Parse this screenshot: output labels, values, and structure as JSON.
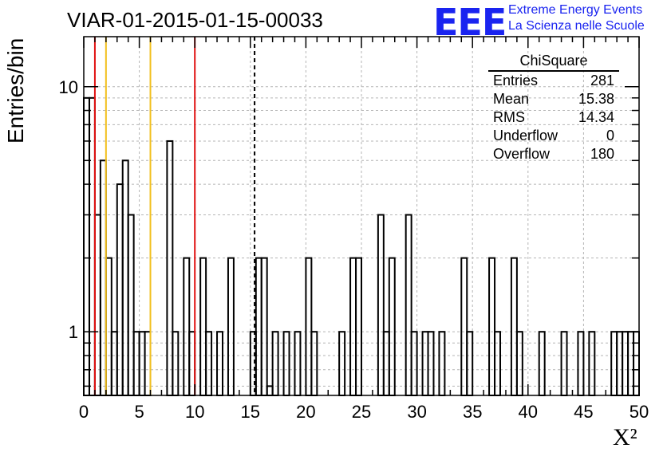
{
  "title": "VIAR-01-2015-01-15-00033",
  "logo": {
    "mark": "EEE",
    "line1": "Extreme Energy Events",
    "line2": "La Scienza nelle Scuole"
  },
  "axes": {
    "xlabel": "X²",
    "ylabel": "Entries/bin",
    "xticks": [
      "0",
      "5",
      "10",
      "15",
      "20",
      "25",
      "30",
      "35",
      "40",
      "45",
      "50"
    ],
    "yticks": [
      "1",
      "10"
    ]
  },
  "stats": {
    "name": "ChiSquare",
    "rows": [
      {
        "label": "Entries",
        "value": "281"
      },
      {
        "label": "Mean",
        "value": "15.38"
      },
      {
        "label": "RMS",
        "value": "14.34"
      },
      {
        "label": "Underflow",
        "value": "0"
      },
      {
        "label": "Overflow",
        "value": "180"
      }
    ]
  },
  "chart_data": {
    "type": "histogram",
    "title": "VIAR-01-2015-01-15-00033",
    "xlabel": "X²",
    "ylabel": "Entries/bin",
    "xlim": [
      0,
      50
    ],
    "ylim": [
      0.55,
      16
    ],
    "y_scale": "log",
    "grid": true,
    "bin_width": 0.5,
    "bins": [
      {
        "x0": 0.0,
        "y": 9
      },
      {
        "x0": 0.5,
        "y": 9
      },
      {
        "x0": 1.0,
        "y": 3
      },
      {
        "x0": 1.5,
        "y": 5
      },
      {
        "x0": 2.0,
        "y": 2
      },
      {
        "x0": 2.5,
        "y": 1
      },
      {
        "x0": 3.0,
        "y": 4
      },
      {
        "x0": 3.5,
        "y": 5
      },
      {
        "x0": 4.0,
        "y": 3
      },
      {
        "x0": 4.5,
        "y": 1
      },
      {
        "x0": 5.0,
        "y": 1
      },
      {
        "x0": 5.5,
        "y": 1
      },
      {
        "x0": 7.5,
        "y": 6
      },
      {
        "x0": 8.0,
        "y": 1
      },
      {
        "x0": 9.0,
        "y": 2
      },
      {
        "x0": 9.5,
        "y": 1
      },
      {
        "x0": 10.5,
        "y": 2
      },
      {
        "x0": 11.0,
        "y": 1
      },
      {
        "x0": 12.0,
        "y": 1
      },
      {
        "x0": 13.0,
        "y": 2
      },
      {
        "x0": 15.0,
        "y": 1
      },
      {
        "x0": 15.5,
        "y": 2
      },
      {
        "x0": 16.0,
        "y": 2
      },
      {
        "x0": 16.5,
        "y": 0.6
      },
      {
        "x0": 17.0,
        "y": 1
      },
      {
        "x0": 18.0,
        "y": 1
      },
      {
        "x0": 19.0,
        "y": 1
      },
      {
        "x0": 20.0,
        "y": 2
      },
      {
        "x0": 20.5,
        "y": 1
      },
      {
        "x0": 23.0,
        "y": 1
      },
      {
        "x0": 24.0,
        "y": 2
      },
      {
        "x0": 24.5,
        "y": 2
      },
      {
        "x0": 26.5,
        "y": 3
      },
      {
        "x0": 27.0,
        "y": 1
      },
      {
        "x0": 27.5,
        "y": 2
      },
      {
        "x0": 29.0,
        "y": 3
      },
      {
        "x0": 29.5,
        "y": 1
      },
      {
        "x0": 30.5,
        "y": 1
      },
      {
        "x0": 31.0,
        "y": 1
      },
      {
        "x0": 32.0,
        "y": 1
      },
      {
        "x0": 34.0,
        "y": 2
      },
      {
        "x0": 34.5,
        "y": 1
      },
      {
        "x0": 36.5,
        "y": 2
      },
      {
        "x0": 37.0,
        "y": 1
      },
      {
        "x0": 38.5,
        "y": 2
      },
      {
        "x0": 39.0,
        "y": 1
      },
      {
        "x0": 41.0,
        "y": 1
      },
      {
        "x0": 43.0,
        "y": 1
      },
      {
        "x0": 44.5,
        "y": 1
      },
      {
        "x0": 45.5,
        "y": 1
      },
      {
        "x0": 47.5,
        "y": 1
      },
      {
        "x0": 48.0,
        "y": 1
      },
      {
        "x0": 48.5,
        "y": 1
      },
      {
        "x0": 49.0,
        "y": 1
      },
      {
        "x0": 49.5,
        "y": 1
      }
    ],
    "reference_lines": [
      {
        "x": 1,
        "color": "#e01010",
        "style": "solid"
      },
      {
        "x": 2,
        "color": "#f2c01e",
        "style": "solid"
      },
      {
        "x": 6,
        "color": "#f2c01e",
        "style": "solid"
      },
      {
        "x": 10,
        "color": "#e01010",
        "style": "solid"
      },
      {
        "x": 15.38,
        "color": "#000000",
        "style": "dashed"
      }
    ]
  }
}
